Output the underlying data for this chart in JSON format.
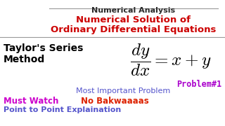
{
  "bg_color": "#ffffff",
  "title1": "Numerical Analysis",
  "title1_color": "#2a2a2a",
  "title2": "Numerical Solution of",
  "title3": "Ordinary Differential Equations",
  "title23_color": "#cc0000",
  "left_label1": "Taylor's Series",
  "left_label2": "Method",
  "left_color": "#000000",
  "equation": "$\\dfrac{dy}{dx} = x + y$",
  "eq_color": "#000000",
  "problem": "Problem#1",
  "problem_color": "#aa00cc",
  "sub1": "Most Important Problem",
  "sub1_color": "#5555cc",
  "sub2a": "Must Watch",
  "sub2a_color": "#cc00cc",
  "sub2b": "No Bakwaaaas",
  "sub2b_color": "#dd2200",
  "sub3": "Point to Point Explaination",
  "sub3_color": "#5555cc",
  "line_color": "#999999"
}
